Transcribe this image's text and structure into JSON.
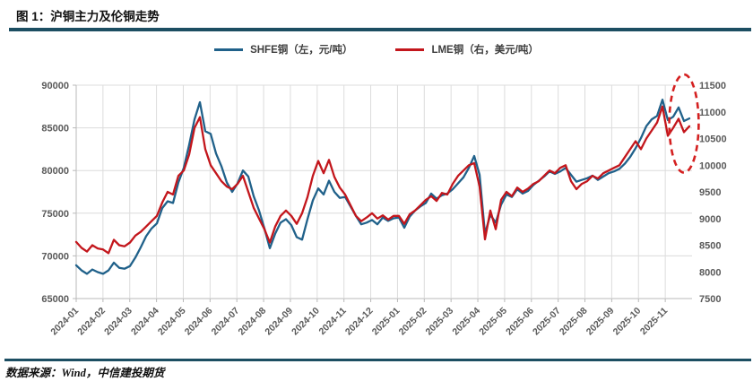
{
  "header": {
    "title": "图 1：沪铜主力及伦铜走势"
  },
  "footer": {
    "source": "数据来源：Wind，中信建投期货"
  },
  "colors": {
    "accent_rule": "#1C4E62",
    "grid": "#DCDCDC",
    "axis": "#B9B9B9",
    "tick_text": "#595959",
    "shfe_line": "#20618A",
    "lme_line": "#C3161C",
    "annotation_red": "#D42020"
  },
  "chart_data": {
    "type": "line",
    "title": "",
    "legend_position": "top-center",
    "grid": true,
    "x_categories": [
      "2024-01",
      "2024-02",
      "2024-03",
      "2024-04",
      "2024-05",
      "2024-06",
      "2024-07",
      "2024-08",
      "2024-09",
      "2024-10",
      "2024-11",
      "2024-12",
      "2025-01",
      "2025-02",
      "2025-03",
      "2025-04",
      "2025-05",
      "2025-06",
      "2025-07",
      "2025-08",
      "2025-09",
      "2025-10",
      "2025-11"
    ],
    "x_span_months": 23,
    "data_span_months": 22.9,
    "left_axis": {
      "label": "SHFE铜（元/吨）",
      "min": 65000,
      "max": 90000,
      "step": 5000
    },
    "right_axis": {
      "label": "LME铜（美元/吨）",
      "min": 7500,
      "max": 11500,
      "step": 500
    },
    "series": [
      {
        "id": "shfe",
        "name": "SHFE铜（左，元/吨）",
        "axis": "left",
        "color": "#20618A",
        "values": [
          68900,
          68300,
          67900,
          68400,
          68100,
          67900,
          68300,
          69200,
          68600,
          68500,
          68800,
          69800,
          71000,
          72300,
          73200,
          73800,
          75600,
          76400,
          76200,
          78600,
          80300,
          83000,
          86000,
          88000,
          84600,
          84300,
          82000,
          80500,
          78600,
          77500,
          78500,
          80000,
          79300,
          77000,
          75300,
          73200,
          70900,
          72600,
          73900,
          74300,
          73600,
          72200,
          71900,
          74300,
          76500,
          77900,
          77200,
          78800,
          77500,
          76800,
          76900,
          75800,
          74700,
          73700,
          73900,
          74200,
          73700,
          74500,
          74100,
          74400,
          74500,
          73300,
          74600,
          75300,
          75800,
          76200,
          77300,
          76700,
          77100,
          77300,
          77800,
          78500,
          79200,
          80300,
          81700,
          79500,
          72600,
          74800,
          73900,
          76000,
          77200,
          76900,
          77800,
          77300,
          77600,
          78300,
          78800,
          79300,
          79900,
          79600,
          79900,
          80300,
          79500,
          78700,
          78900,
          79100,
          79400,
          78900,
          79300,
          79700,
          79900,
          80200,
          80800,
          81600,
          82600,
          83800,
          85200,
          86000,
          86400,
          88300,
          85900,
          86300,
          87400,
          85800,
          86100
        ]
      },
      {
        "id": "lme",
        "name": "LME铜（右，美元/吨）",
        "axis": "right",
        "color": "#C3161C",
        "values": [
          8560,
          8450,
          8380,
          8500,
          8440,
          8420,
          8350,
          8600,
          8500,
          8480,
          8550,
          8680,
          8750,
          8850,
          8950,
          9050,
          9300,
          9500,
          9450,
          9800,
          9900,
          10200,
          10700,
          10900,
          10300,
          10000,
          9850,
          9700,
          9600,
          9550,
          9650,
          9800,
          9500,
          9200,
          9000,
          8800,
          8550,
          8850,
          9050,
          9150,
          9050,
          8900,
          9100,
          9400,
          9800,
          10080,
          9850,
          10100,
          9780,
          9580,
          9450,
          9250,
          9050,
          8950,
          9020,
          9100,
          9000,
          9060,
          8980,
          9050,
          9050,
          8900,
          9080,
          9150,
          9250,
          9350,
          9420,
          9330,
          9480,
          9450,
          9650,
          9800,
          9900,
          10000,
          10040,
          9600,
          8610,
          9150,
          8800,
          9350,
          9500,
          9420,
          9580,
          9500,
          9560,
          9650,
          9700,
          9800,
          9900,
          9850,
          9950,
          10000,
          9700,
          9550,
          9650,
          9700,
          9800,
          9750,
          9850,
          9900,
          9950,
          10000,
          10150,
          10300,
          10450,
          10300,
          10500,
          10650,
          10800,
          11100,
          10550,
          10700,
          10870,
          10620,
          10730
        ]
      }
    ],
    "annotation": {
      "shape": "dashed-ellipse",
      "color": "#D42020",
      "center_month": 22.7,
      "center_value_right": 10780,
      "radius_months": 0.55,
      "radius_value_right": 920
    }
  }
}
